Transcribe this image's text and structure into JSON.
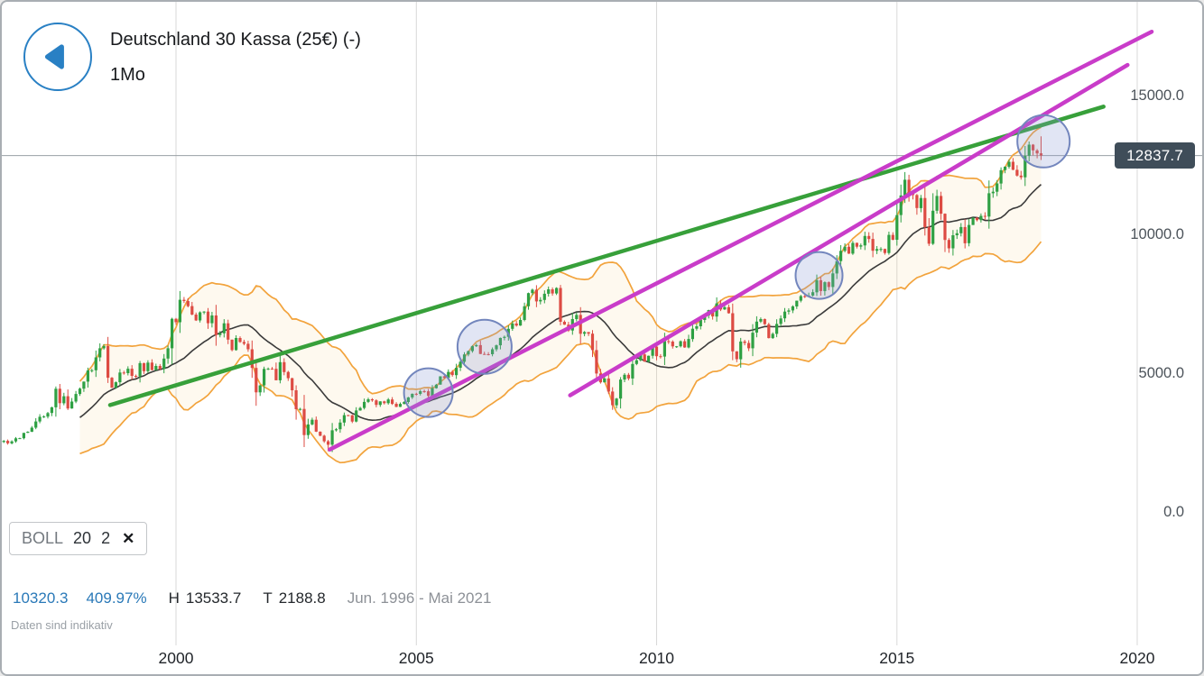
{
  "header": {
    "title": "Deutschland 30 Kassa (25€) (-)",
    "timeframe": "1Mo"
  },
  "indicator": {
    "name": "BOLL",
    "period": "20",
    "deviation": "2",
    "close_icon": "✕"
  },
  "footer": {
    "change_abs": "10320.3",
    "change_pct": "409.97%",
    "high_label": "H",
    "high_value": "13533.7",
    "low_label": "T",
    "low_value": "2188.8",
    "range": "Jun. 1996 - Mai 2021",
    "disclaimer": "Daten sind indikativ"
  },
  "chart_data": {
    "type": "candlestick",
    "instrument": "Deutschland 30 Kassa (25€)",
    "interval": "1Mo",
    "date_range": "Jun. 1996 - Mai 2021",
    "current_price": 12837.7,
    "current_price_label": "12837.7",
    "period_high": 13533.7,
    "period_low": 2188.8,
    "first_open": 2517.4,
    "start_year": 1996.4167,
    "closes": [
      2561,
      2473,
      2543,
      2652,
      2659,
      2849,
      2889,
      3035,
      3260,
      3429,
      3438,
      3563,
      3768,
      4438,
      3917,
      4170,
      3727,
      3976,
      4250,
      4442,
      4694,
      5097,
      5105,
      5569,
      5897,
      5974,
      4834,
      4475,
      4671,
      5023,
      5002,
      5160,
      4904,
      4884,
      5359,
      5070,
      5379,
      5110,
      5259,
      5150,
      5525,
      5896,
      6958,
      6836,
      7644,
      7599,
      7415,
      7109,
      6898,
      7190,
      7216,
      6798,
      7077,
      6372,
      6434,
      6795,
      6208,
      5830,
      6265,
      6123,
      6058,
      5861,
      5188,
      4308,
      4559,
      5154,
      5160,
      5156,
      4745,
      5397,
      5041,
      4818,
      4383,
      3700,
      3712,
      2769,
      3152,
      3320,
      2893,
      2747,
      2547,
      2423,
      2942,
      2982,
      3221,
      3487,
      3484,
      3256,
      3655,
      3746,
      3965,
      4058,
      4018,
      3857,
      3985,
      3921,
      4053,
      3895,
      3785,
      3893,
      3960,
      4126,
      4256,
      4254,
      4350,
      4348,
      4184,
      4460,
      4586,
      4886,
      4829,
      5044,
      4929,
      5193,
      5408,
      5674,
      5796,
      5970,
      6009,
      5692,
      5683,
      5682,
      5859,
      6004,
      6269,
      6309,
      6597,
      6789,
      6715,
      6917,
      7409,
      7883,
      8007,
      7584,
      7638,
      7861,
      8019,
      7870,
      8067,
      6851,
      6748,
      6535,
      6948,
      7096,
      6418,
      6479,
      6422,
      5831,
      4988,
      4669,
      4810,
      4338,
      3844,
      4085,
      4769,
      4941,
      4809,
      5332,
      5465,
      5675,
      5415,
      5626,
      5957,
      5609,
      5598,
      6154,
      6136,
      5964,
      5966,
      6148,
      5925,
      6229,
      6601,
      6688,
      6914,
      7077,
      7272,
      7041,
      7514,
      7294,
      7376,
      7159,
      5785,
      5502,
      6141,
      6088,
      5898,
      6459,
      6856,
      6947,
      6761,
      6264,
      6416,
      6772,
      6971,
      7216,
      7260,
      7405,
      7612,
      7776,
      7741,
      7795,
      7914,
      8349,
      7959,
      8276,
      8103,
      8594,
      9034,
      9405,
      9552,
      9306,
      9692,
      9556,
      9603,
      9943,
      9833,
      9407,
      9470,
      9474,
      9327,
      9981,
      9806,
      10694,
      11402,
      11966,
      11454,
      11414,
      10945,
      11309,
      10259,
      9660,
      10850,
      11382,
      10743,
      9798,
      9495,
      9966,
      10039,
      10263,
      9680,
      10337,
      10593,
      10511,
      10665,
      10640,
      11481,
      11535,
      11834,
      12313,
      12438,
      12615,
      12325,
      12118,
      12056,
      12829,
      13229,
      13024,
      12918,
      12837.7
    ],
    "special": {
      "81": {
        "low": 2188.8
      },
      "259": {
        "high": 13533.7
      }
    },
    "bollinger": {
      "period": 20,
      "deviations": 2
    },
    "x_ticks": [
      {
        "label": "2000",
        "year": 2000
      },
      {
        "label": "2005",
        "year": 2005
      },
      {
        "label": "2010",
        "year": 2010
      },
      {
        "label": "2015",
        "year": 2015
      },
      {
        "label": "2020",
        "year": 2020
      }
    ],
    "y_ticks": [
      {
        "label": "15000.0",
        "value": 15000
      },
      {
        "label": "10000.0",
        "value": 10000
      },
      {
        "label": "5000.0",
        "value": 5000
      },
      {
        "label": "0.0",
        "value": 0
      }
    ],
    "trend_lines": [
      {
        "color": "#37a03a",
        "width": 4.5,
        "from": {
          "year": 1998.63,
          "price": 3850
        },
        "to": {
          "year": 2019.3,
          "price": 14600
        }
      },
      {
        "color": "#c93cc9",
        "width": 4.5,
        "from": {
          "year": 2003.2,
          "price": 2250
        },
        "to": {
          "year": 2020.3,
          "price": 17300
        }
      },
      {
        "color": "#c93cc9",
        "width": 4.5,
        "from": {
          "year": 2008.2,
          "price": 4200
        },
        "to": {
          "year": 2019.8,
          "price": 16100
        }
      }
    ],
    "highlights": [
      {
        "year": 2005.25,
        "price": 4300,
        "r": 27
      },
      {
        "year": 2006.42,
        "price": 5950,
        "r": 30
      },
      {
        "year": 2013.38,
        "price": 8520,
        "r": 26
      },
      {
        "year": 2018.05,
        "price": 13350,
        "r": 29
      }
    ],
    "colors": {
      "up": "#2ea043",
      "down": "#dd4b43",
      "band": "#f2a33c",
      "band_fill": "rgba(248,216,150,0.15)",
      "sma": "#3b3b3b",
      "grid": "#d8d8d8",
      "price_line": "#9aa0a5",
      "highlight_fill": "rgba(135,150,210,0.25)",
      "highlight_stroke": "#7386bd",
      "accent_blue": "#2980c4",
      "badge_bg": "#3f4d59"
    }
  }
}
